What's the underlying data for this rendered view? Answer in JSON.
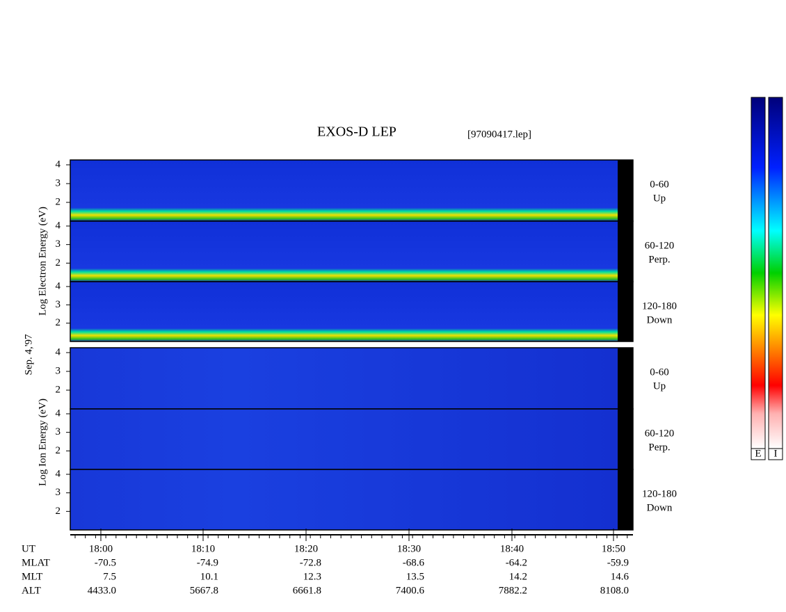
{
  "header": {
    "title": "EXOS-D LEP",
    "file": "[97090417.lep]"
  },
  "date": "Sep. 4,'97",
  "groups": [
    {
      "label": "Log Electron Energy (eV)",
      "panels": [
        {
          "yticks": [
            "4",
            "3",
            "2"
          ],
          "label": [
            "0-60",
            "Up"
          ]
        },
        {
          "yticks": [
            "4",
            "3",
            "2"
          ],
          "label": [
            "60-120",
            "Perp."
          ]
        },
        {
          "yticks": [
            "4",
            "3",
            "2"
          ],
          "label": [
            "120-180",
            "Down"
          ]
        }
      ]
    },
    {
      "label": "Log Ion Energy (eV)",
      "panels": [
        {
          "yticks": [
            "4",
            "3",
            "2"
          ],
          "label": [
            "0-60",
            "Up"
          ]
        },
        {
          "yticks": [
            "4",
            "3",
            "2"
          ],
          "label": [
            "60-120",
            "Perp."
          ]
        },
        {
          "yticks": [
            "4",
            "3",
            "2"
          ],
          "label": [
            "120-180",
            "Down"
          ]
        }
      ]
    }
  ],
  "time_axis": {
    "rows": [
      {
        "name": "UT",
        "values": [
          "18:00",
          "18:10",
          "18:20",
          "18:30",
          "18:40",
          "18:50"
        ]
      },
      {
        "name": "MLAT",
        "values": [
          "-70.5",
          "-74.9",
          "-72.8",
          "-68.6",
          "-64.2",
          "-59.9"
        ]
      },
      {
        "name": "MLT",
        "values": [
          "7.5",
          "10.1",
          "12.3",
          "13.5",
          "14.2",
          "14.6"
        ]
      },
      {
        "name": "ALT",
        "values": [
          "4433.0",
          "5667.8",
          "6661.8",
          "7400.6",
          "7882.2",
          "8108.0"
        ]
      }
    ]
  },
  "colorbar": {
    "labels": [
      "E",
      "I"
    ]
  }
}
